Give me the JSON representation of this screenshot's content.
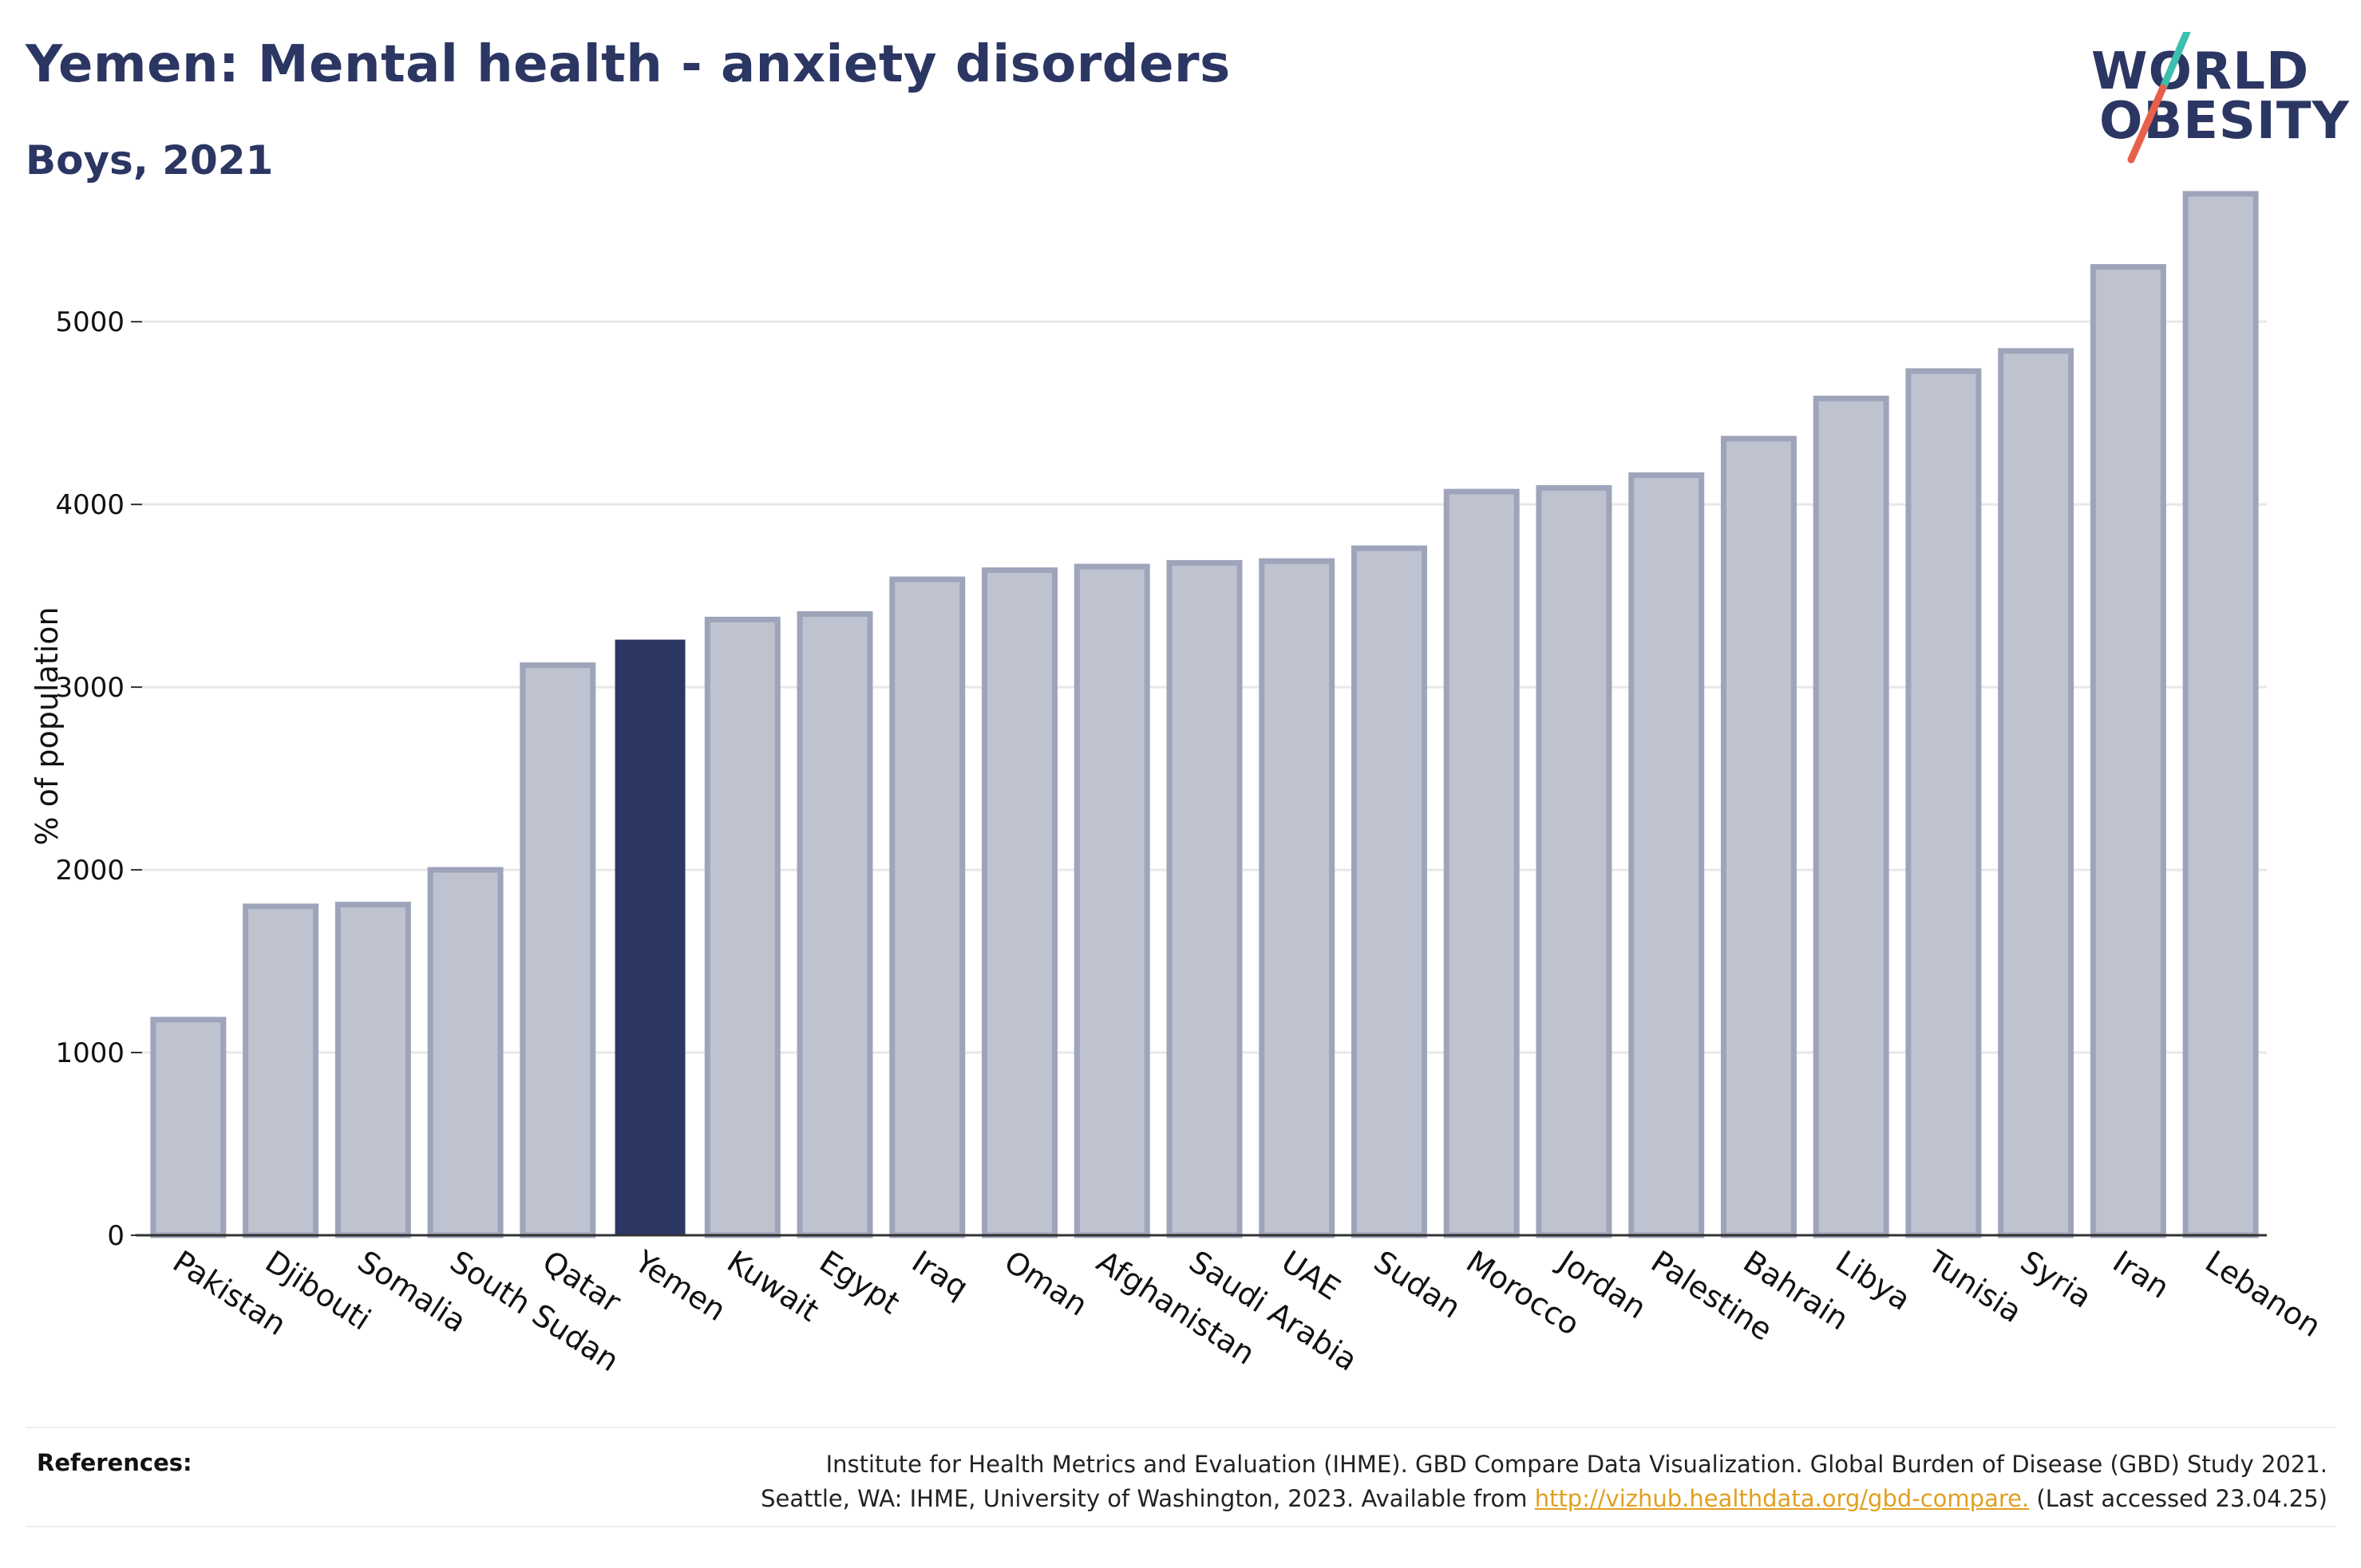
{
  "title": "Yemen: Mental health - anxiety disorders",
  "subtitle": "Boys, 2021",
  "logo": {
    "line1": "WORLD",
    "line2": "OBESITY",
    "slash_colors": [
      "#3dbfb0",
      "#e8604c"
    ]
  },
  "colors": {
    "highlight": "#2b3663",
    "bar_fill": "#bfc3d0",
    "bar_stroke": "#9ea4ba",
    "grid": "#e8e8e8",
    "axis": "#333333",
    "link": "#e0a020"
  },
  "chart_data": {
    "type": "bar",
    "categories": [
      "Pakistan",
      "Djibouti",
      "Somalia",
      "South Sudan",
      "Qatar",
      "Yemen",
      "Kuwait",
      "Egypt",
      "Iraq",
      "Oman",
      "Afghanistan",
      "Saudi Arabia",
      "UAE",
      "Sudan",
      "Morocco",
      "Jordan",
      "Palestine",
      "Bahrain",
      "Libya",
      "Tunisia",
      "Syria",
      "Iran",
      "Lebanon"
    ],
    "values": [
      1180,
      1800,
      1810,
      2000,
      3120,
      3260,
      3370,
      3400,
      3590,
      3640,
      3660,
      3680,
      3690,
      3760,
      4070,
      4090,
      4160,
      4360,
      4580,
      4730,
      4840,
      5300,
      5700
    ],
    "highlight": "Yemen",
    "ylabel": "% of population",
    "xlabel": "",
    "ylim": [
      0,
      5800
    ],
    "yticks": [
      0,
      1000,
      2000,
      3000,
      4000,
      5000
    ],
    "grid": true
  },
  "references": {
    "label": "References:",
    "line1": "Institute for Health Metrics and Evaluation (IHME). GBD Compare Data Visualization. Global Burden of Disease (GBD) Study 2021.",
    "line2_pre": "Seattle, WA: IHME, University of Washington, 2023. Available from ",
    "link": "http://vizhub.healthdata.org/gbd-compare.",
    "line2_post": " (Last accessed 23.04.25)"
  }
}
